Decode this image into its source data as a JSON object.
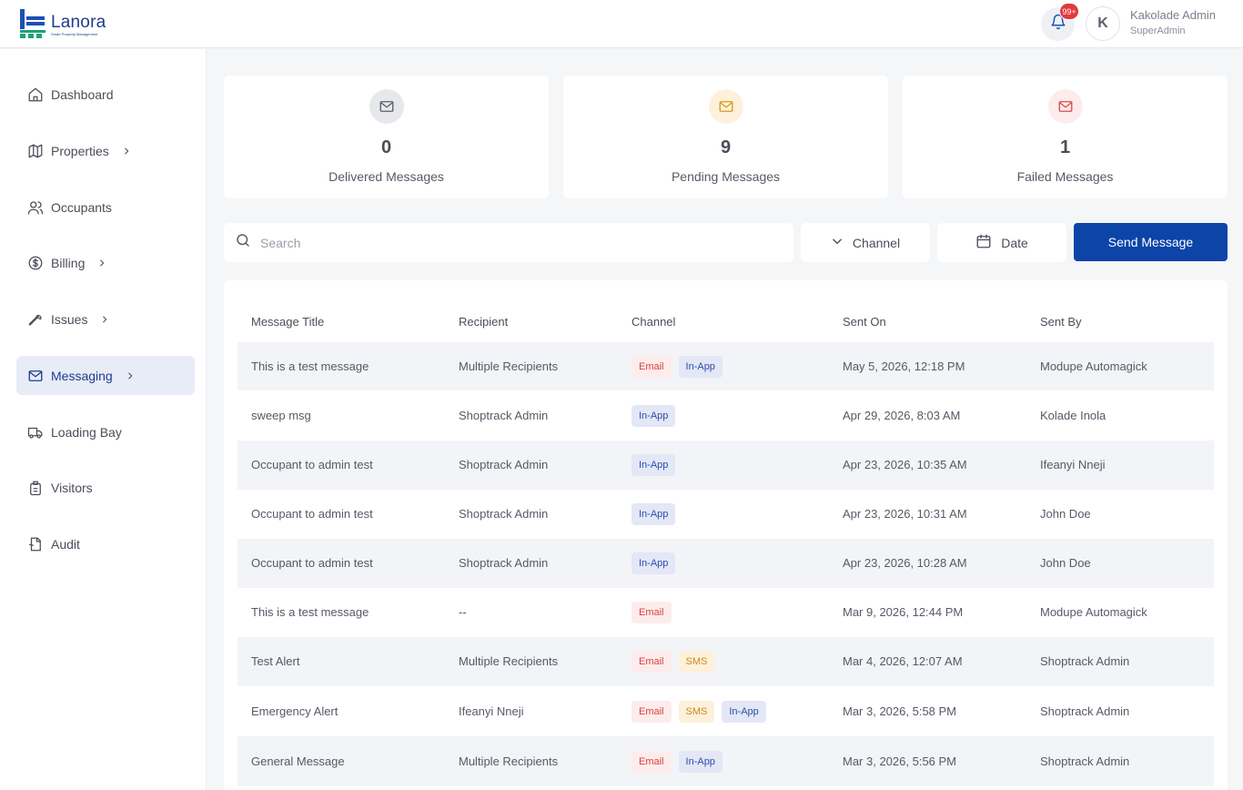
{
  "header": {
    "logo_name": "Lanora",
    "logo_tagline": "Smart Property Management",
    "notification_badge": "99+",
    "avatar_initial": "K",
    "user_name": "Kakolade Admin",
    "user_role": "SuperAdmin"
  },
  "sidebar": {
    "items": [
      {
        "label": "Dashboard",
        "icon": "home-icon",
        "chevron": false,
        "active": false
      },
      {
        "label": "Properties",
        "icon": "map-icon",
        "chevron": true,
        "active": false
      },
      {
        "label": "Occupants",
        "icon": "users-icon",
        "chevron": false,
        "active": false
      },
      {
        "label": "Billing",
        "icon": "dollar-circle-icon",
        "chevron": true,
        "active": false
      },
      {
        "label": "Issues",
        "icon": "wrench-icon",
        "chevron": true,
        "active": false
      },
      {
        "label": "Messaging",
        "icon": "mail-icon",
        "chevron": true,
        "active": true
      },
      {
        "label": "Loading Bay",
        "icon": "truck-icon",
        "chevron": false,
        "active": false
      },
      {
        "label": "Visitors",
        "icon": "badge-icon",
        "chevron": false,
        "active": false
      },
      {
        "label": "Audit",
        "icon": "document-icon",
        "chevron": false,
        "active": false
      }
    ]
  },
  "stats": [
    {
      "value": "0",
      "label": "Delivered Messages",
      "icon_color": "#5b606b",
      "icon_bg": "#e6e8ec"
    },
    {
      "value": "9",
      "label": "Pending Messages",
      "icon_color": "#d99a1b",
      "icon_bg": "#fdf1dc"
    },
    {
      "value": "1",
      "label": "Failed Messages",
      "icon_color": "#e04848",
      "icon_bg": "#fdecec"
    }
  ],
  "toolbar": {
    "search_placeholder": "Search",
    "channel_label": "Channel",
    "date_label": "Date",
    "send_label": "Send Message"
  },
  "table": {
    "headers": [
      "Message Title",
      "Recipient",
      "Channel",
      "Sent On",
      "Sent By"
    ],
    "rows": [
      {
        "title": "This is a test message",
        "recipient": "Multiple Recipients",
        "channels": [
          "Email",
          "In-App"
        ],
        "sent_on": "May 5, 2026, 12:18 PM",
        "sent_by": "Modupe Automagick"
      },
      {
        "title": "sweep msg",
        "recipient": "Shoptrack Admin",
        "channels": [
          "In-App"
        ],
        "sent_on": "Apr 29, 2026, 8:03 AM",
        "sent_by": "Kolade Inola"
      },
      {
        "title": "Occupant to admin test",
        "recipient": "Shoptrack Admin",
        "channels": [
          "In-App"
        ],
        "sent_on": "Apr 23, 2026, 10:35 AM",
        "sent_by": "Ifeanyi Nneji"
      },
      {
        "title": "Occupant to admin test",
        "recipient": "Shoptrack Admin",
        "channels": [
          "In-App"
        ],
        "sent_on": "Apr 23, 2026, 10:31 AM",
        "sent_by": "John Doe"
      },
      {
        "title": "Occupant to admin test",
        "recipient": "Shoptrack Admin",
        "channels": [
          "In-App"
        ],
        "sent_on": "Apr 23, 2026, 10:28 AM",
        "sent_by": "John Doe"
      },
      {
        "title": "This is a test message",
        "recipient": "--",
        "channels": [
          "Email"
        ],
        "sent_on": "Mar 9, 2026, 12:44 PM",
        "sent_by": "Modupe Automagick"
      },
      {
        "title": "Test Alert",
        "recipient": "Multiple Recipients",
        "channels": [
          "Email",
          "SMS"
        ],
        "sent_on": "Mar 4, 2026, 12:07 AM",
        "sent_by": "Shoptrack Admin"
      },
      {
        "title": "Emergency Alert",
        "recipient": "Ifeanyi Nneji",
        "channels": [
          "Email",
          "SMS",
          "In-App"
        ],
        "sent_on": "Mar 3, 2026, 5:58 PM",
        "sent_by": "Shoptrack Admin"
      },
      {
        "title": "General Message",
        "recipient": "Multiple Recipients",
        "channels": [
          "Email",
          "In-App"
        ],
        "sent_on": "Mar 3, 2026, 5:56 PM",
        "sent_by": "Shoptrack Admin"
      }
    ]
  },
  "colors": {
    "brand": "#1d3d8f",
    "primary_button": "#0c44a8",
    "badge": "#e03a3e"
  }
}
